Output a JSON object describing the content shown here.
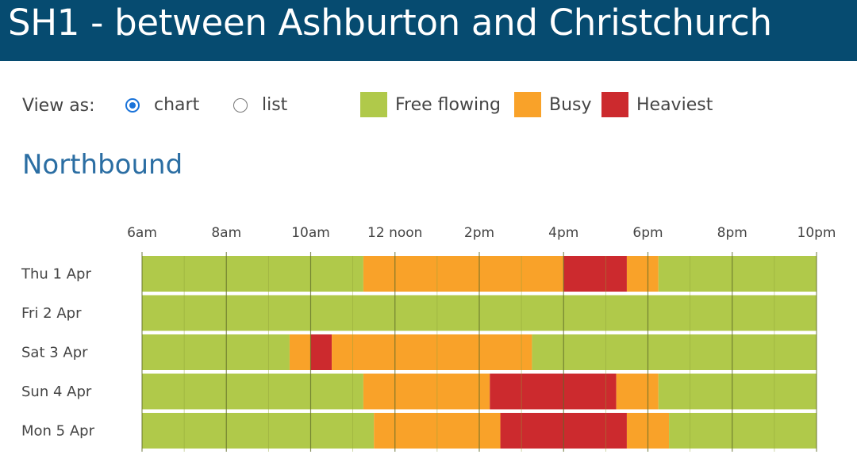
{
  "page": {
    "title": "SH1 - between Ashburton and Christchurch",
    "direction": "Northbound"
  },
  "controls": {
    "view_label": "View as:",
    "options": [
      {
        "label": "chart",
        "selected": true
      },
      {
        "label": "list",
        "selected": false
      }
    ]
  },
  "legend": [
    {
      "label": "Free flowing",
      "color": "#b0c94a"
    },
    {
      "label": "Busy",
      "color": "#f9a229"
    },
    {
      "label": "Heaviest",
      "color": "#cc2a2e"
    }
  ],
  "chart_data": {
    "type": "timeline",
    "title": "Northbound",
    "x_range_hours": [
      6,
      22
    ],
    "x_ticks": [
      {
        "hour": 6,
        "label": "6am"
      },
      {
        "hour": 8,
        "label": "8am"
      },
      {
        "hour": 10,
        "label": "10am"
      },
      {
        "hour": 12,
        "label": "12 noon"
      },
      {
        "hour": 14,
        "label": "2pm"
      },
      {
        "hour": 16,
        "label": "4pm"
      },
      {
        "hour": 18,
        "label": "6pm"
      },
      {
        "hour": 20,
        "label": "8pm"
      },
      {
        "hour": 22,
        "label": "10pm"
      }
    ],
    "rows": [
      {
        "label": "Thu 1 Apr",
        "segments": [
          {
            "start": 6,
            "end": 11.25,
            "status": "Free flowing"
          },
          {
            "start": 11.25,
            "end": 16,
            "status": "Busy"
          },
          {
            "start": 16,
            "end": 17.5,
            "status": "Heaviest"
          },
          {
            "start": 17.5,
            "end": 18.25,
            "status": "Busy"
          },
          {
            "start": 18.25,
            "end": 22,
            "status": "Free flowing"
          }
        ]
      },
      {
        "label": "Fri 2 Apr",
        "segments": [
          {
            "start": 6,
            "end": 22,
            "status": "Free flowing"
          }
        ]
      },
      {
        "label": "Sat 3 Apr",
        "segments": [
          {
            "start": 6,
            "end": 9.5,
            "status": "Free flowing"
          },
          {
            "start": 9.5,
            "end": 10,
            "status": "Busy"
          },
          {
            "start": 10,
            "end": 10.5,
            "status": "Heaviest"
          },
          {
            "start": 10.5,
            "end": 15.25,
            "status": "Busy"
          },
          {
            "start": 15.25,
            "end": 22,
            "status": "Free flowing"
          }
        ]
      },
      {
        "label": "Sun 4 Apr",
        "segments": [
          {
            "start": 6,
            "end": 11.25,
            "status": "Free flowing"
          },
          {
            "start": 11.25,
            "end": 14.25,
            "status": "Busy"
          },
          {
            "start": 14.25,
            "end": 17.25,
            "status": "Heaviest"
          },
          {
            "start": 17.25,
            "end": 18.25,
            "status": "Busy"
          },
          {
            "start": 18.25,
            "end": 22,
            "status": "Free flowing"
          }
        ]
      },
      {
        "label": "Mon 5 Apr",
        "segments": [
          {
            "start": 6,
            "end": 11.5,
            "status": "Free flowing"
          },
          {
            "start": 11.5,
            "end": 14.5,
            "status": "Busy"
          },
          {
            "start": 14.5,
            "end": 17.5,
            "status": "Heaviest"
          },
          {
            "start": 17.5,
            "end": 18.5,
            "status": "Busy"
          },
          {
            "start": 18.5,
            "end": 22,
            "status": "Free flowing"
          }
        ]
      }
    ]
  }
}
